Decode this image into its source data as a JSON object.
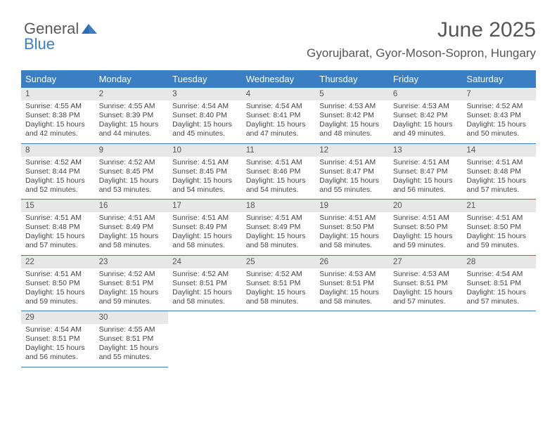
{
  "logo": {
    "text1": "General",
    "text2": "Blue"
  },
  "title": "June 2025",
  "subtitle": "Gyorujbarat, Gyor-Moson-Sopron, Hungary",
  "colors": {
    "accent": "#3a7fc4",
    "header_bg": "#3a7fc4",
    "header_text": "#ffffff",
    "daynum_bg": "#e7e7e7",
    "body_text": "#444444",
    "title_text": "#555555"
  },
  "typography": {
    "title_fontsize": 30,
    "subtitle_fontsize": 17,
    "dayhead_fontsize": 13,
    "daynum_fontsize": 11.5,
    "body_fontsize": 10.5,
    "font_family": "Arial"
  },
  "daysOfWeek": [
    "Sunday",
    "Monday",
    "Tuesday",
    "Wednesday",
    "Thursday",
    "Friday",
    "Saturday"
  ],
  "weeks": [
    [
      {
        "n": "1",
        "sunrise": "Sunrise: 4:55 AM",
        "sunset": "Sunset: 8:38 PM",
        "daylight": "Daylight: 15 hours and 42 minutes."
      },
      {
        "n": "2",
        "sunrise": "Sunrise: 4:55 AM",
        "sunset": "Sunset: 8:39 PM",
        "daylight": "Daylight: 15 hours and 44 minutes."
      },
      {
        "n": "3",
        "sunrise": "Sunrise: 4:54 AM",
        "sunset": "Sunset: 8:40 PM",
        "daylight": "Daylight: 15 hours and 45 minutes."
      },
      {
        "n": "4",
        "sunrise": "Sunrise: 4:54 AM",
        "sunset": "Sunset: 8:41 PM",
        "daylight": "Daylight: 15 hours and 47 minutes."
      },
      {
        "n": "5",
        "sunrise": "Sunrise: 4:53 AM",
        "sunset": "Sunset: 8:42 PM",
        "daylight": "Daylight: 15 hours and 48 minutes."
      },
      {
        "n": "6",
        "sunrise": "Sunrise: 4:53 AM",
        "sunset": "Sunset: 8:42 PM",
        "daylight": "Daylight: 15 hours and 49 minutes."
      },
      {
        "n": "7",
        "sunrise": "Sunrise: 4:52 AM",
        "sunset": "Sunset: 8:43 PM",
        "daylight": "Daylight: 15 hours and 50 minutes."
      }
    ],
    [
      {
        "n": "8",
        "sunrise": "Sunrise: 4:52 AM",
        "sunset": "Sunset: 8:44 PM",
        "daylight": "Daylight: 15 hours and 52 minutes."
      },
      {
        "n": "9",
        "sunrise": "Sunrise: 4:52 AM",
        "sunset": "Sunset: 8:45 PM",
        "daylight": "Daylight: 15 hours and 53 minutes."
      },
      {
        "n": "10",
        "sunrise": "Sunrise: 4:51 AM",
        "sunset": "Sunset: 8:45 PM",
        "daylight": "Daylight: 15 hours and 54 minutes."
      },
      {
        "n": "11",
        "sunrise": "Sunrise: 4:51 AM",
        "sunset": "Sunset: 8:46 PM",
        "daylight": "Daylight: 15 hours and 54 minutes."
      },
      {
        "n": "12",
        "sunrise": "Sunrise: 4:51 AM",
        "sunset": "Sunset: 8:47 PM",
        "daylight": "Daylight: 15 hours and 55 minutes."
      },
      {
        "n": "13",
        "sunrise": "Sunrise: 4:51 AM",
        "sunset": "Sunset: 8:47 PM",
        "daylight": "Daylight: 15 hours and 56 minutes."
      },
      {
        "n": "14",
        "sunrise": "Sunrise: 4:51 AM",
        "sunset": "Sunset: 8:48 PM",
        "daylight": "Daylight: 15 hours and 57 minutes."
      }
    ],
    [
      {
        "n": "15",
        "sunrise": "Sunrise: 4:51 AM",
        "sunset": "Sunset: 8:48 PM",
        "daylight": "Daylight: 15 hours and 57 minutes."
      },
      {
        "n": "16",
        "sunrise": "Sunrise: 4:51 AM",
        "sunset": "Sunset: 8:49 PM",
        "daylight": "Daylight: 15 hours and 58 minutes."
      },
      {
        "n": "17",
        "sunrise": "Sunrise: 4:51 AM",
        "sunset": "Sunset: 8:49 PM",
        "daylight": "Daylight: 15 hours and 58 minutes."
      },
      {
        "n": "18",
        "sunrise": "Sunrise: 4:51 AM",
        "sunset": "Sunset: 8:49 PM",
        "daylight": "Daylight: 15 hours and 58 minutes."
      },
      {
        "n": "19",
        "sunrise": "Sunrise: 4:51 AM",
        "sunset": "Sunset: 8:50 PM",
        "daylight": "Daylight: 15 hours and 58 minutes."
      },
      {
        "n": "20",
        "sunrise": "Sunrise: 4:51 AM",
        "sunset": "Sunset: 8:50 PM",
        "daylight": "Daylight: 15 hours and 59 minutes."
      },
      {
        "n": "21",
        "sunrise": "Sunrise: 4:51 AM",
        "sunset": "Sunset: 8:50 PM",
        "daylight": "Daylight: 15 hours and 59 minutes."
      }
    ],
    [
      {
        "n": "22",
        "sunrise": "Sunrise: 4:51 AM",
        "sunset": "Sunset: 8:50 PM",
        "daylight": "Daylight: 15 hours and 59 minutes."
      },
      {
        "n": "23",
        "sunrise": "Sunrise: 4:52 AM",
        "sunset": "Sunset: 8:51 PM",
        "daylight": "Daylight: 15 hours and 59 minutes."
      },
      {
        "n": "24",
        "sunrise": "Sunrise: 4:52 AM",
        "sunset": "Sunset: 8:51 PM",
        "daylight": "Daylight: 15 hours and 58 minutes."
      },
      {
        "n": "25",
        "sunrise": "Sunrise: 4:52 AM",
        "sunset": "Sunset: 8:51 PM",
        "daylight": "Daylight: 15 hours and 58 minutes."
      },
      {
        "n": "26",
        "sunrise": "Sunrise: 4:53 AM",
        "sunset": "Sunset: 8:51 PM",
        "daylight": "Daylight: 15 hours and 58 minutes."
      },
      {
        "n": "27",
        "sunrise": "Sunrise: 4:53 AM",
        "sunset": "Sunset: 8:51 PM",
        "daylight": "Daylight: 15 hours and 57 minutes."
      },
      {
        "n": "28",
        "sunrise": "Sunrise: 4:54 AM",
        "sunset": "Sunset: 8:51 PM",
        "daylight": "Daylight: 15 hours and 57 minutes."
      }
    ],
    [
      {
        "n": "29",
        "sunrise": "Sunrise: 4:54 AM",
        "sunset": "Sunset: 8:51 PM",
        "daylight": "Daylight: 15 hours and 56 minutes."
      },
      {
        "n": "30",
        "sunrise": "Sunrise: 4:55 AM",
        "sunset": "Sunset: 8:51 PM",
        "daylight": "Daylight: 15 hours and 55 minutes."
      },
      null,
      null,
      null,
      null,
      null
    ]
  ]
}
